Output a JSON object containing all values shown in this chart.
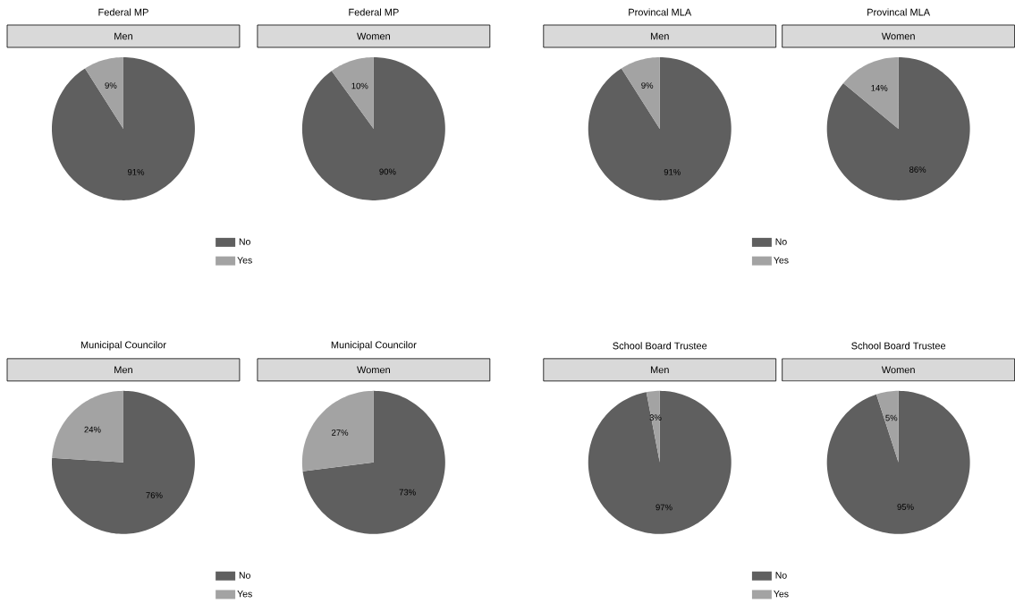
{
  "chart_data": [
    {
      "type": "pie",
      "title": "Federal MP",
      "categories": [
        "No",
        "Yes"
      ],
      "colors": [
        "#5f5f5f",
        "#a3a3a3"
      ],
      "legend": "bottom",
      "series": [
        {
          "name": "Men",
          "values": [
            91,
            9
          ],
          "value_labels": [
            "91%",
            "9%"
          ]
        },
        {
          "name": "Women",
          "values": [
            90,
            10
          ],
          "value_labels": [
            "90%",
            "10%"
          ]
        }
      ]
    },
    {
      "type": "pie",
      "title": "Provincal MLA",
      "categories": [
        "No",
        "Yes"
      ],
      "colors": [
        "#5f5f5f",
        "#a3a3a3"
      ],
      "legend": "bottom",
      "series": [
        {
          "name": "Men",
          "values": [
            91,
            9
          ],
          "value_labels": [
            "91%",
            "9%"
          ]
        },
        {
          "name": "Women",
          "values": [
            86,
            14
          ],
          "value_labels": [
            "86%",
            "14%"
          ]
        }
      ]
    },
    {
      "type": "pie",
      "title": "Municipal Councilor",
      "categories": [
        "No",
        "Yes"
      ],
      "colors": [
        "#5f5f5f",
        "#a3a3a3"
      ],
      "legend": "bottom",
      "series": [
        {
          "name": "Men",
          "values": [
            76,
            24
          ],
          "value_labels": [
            "76%",
            "24%"
          ]
        },
        {
          "name": "Women",
          "values": [
            73,
            27
          ],
          "value_labels": [
            "73%",
            "27%"
          ]
        }
      ]
    },
    {
      "type": "pie",
      "title": "School Board Trustee",
      "categories": [
        "No",
        "Yes"
      ],
      "colors": [
        "#5f5f5f",
        "#a3a3a3"
      ],
      "legend": "bottom",
      "series": [
        {
          "name": "Men",
          "values": [
            97,
            3
          ],
          "value_labels": [
            "97%",
            "3%"
          ]
        },
        {
          "name": "Women",
          "values": [
            95,
            5
          ],
          "value_labels": [
            "95%",
            "5%"
          ]
        }
      ]
    }
  ]
}
